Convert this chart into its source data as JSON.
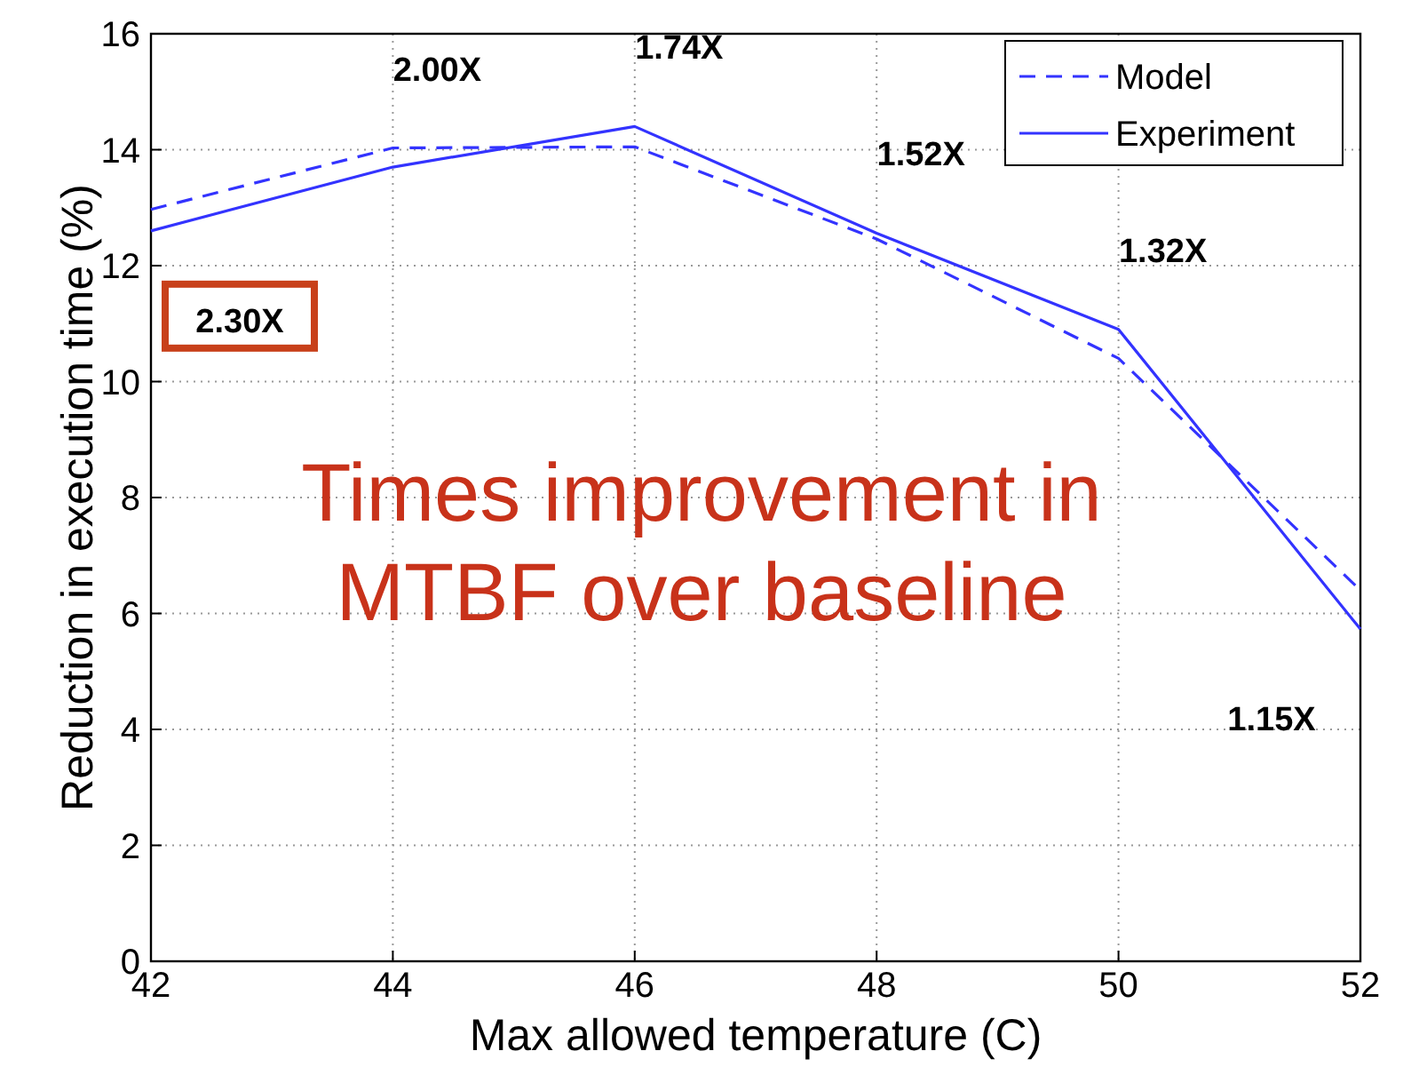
{
  "chart_data": {
    "type": "line",
    "xlabel": "Max allowed temperature (C)",
    "ylabel": "Reduction in execution time (%)",
    "x": [
      42,
      44,
      46,
      48,
      50,
      52
    ],
    "series": [
      {
        "name": "Model",
        "color": "#3333ff",
        "line_style": "dashed",
        "values": [
          12.97,
          14.03,
          14.05,
          12.46,
          10.4,
          6.4
        ]
      },
      {
        "name": "Experiment",
        "color": "#3333ff",
        "line_style": "solid",
        "values": [
          12.6,
          13.7,
          14.4,
          12.56,
          10.9,
          5.73
        ]
      }
    ],
    "xlim": [
      42,
      52
    ],
    "xticks": [
      42,
      44,
      46,
      48,
      50,
      52
    ],
    "ylim": [
      0,
      16
    ],
    "yticks": [
      0,
      2,
      4,
      6,
      8,
      10,
      12,
      14,
      16
    ],
    "grid": true,
    "legend": "top right",
    "marker": "none",
    "annotations": [
      "2.30X",
      "2.00X",
      "1.74X",
      "1.52X",
      "1.32X",
      "1.15X",
      "Times improvement in MTBF over baseline"
    ]
  }
}
